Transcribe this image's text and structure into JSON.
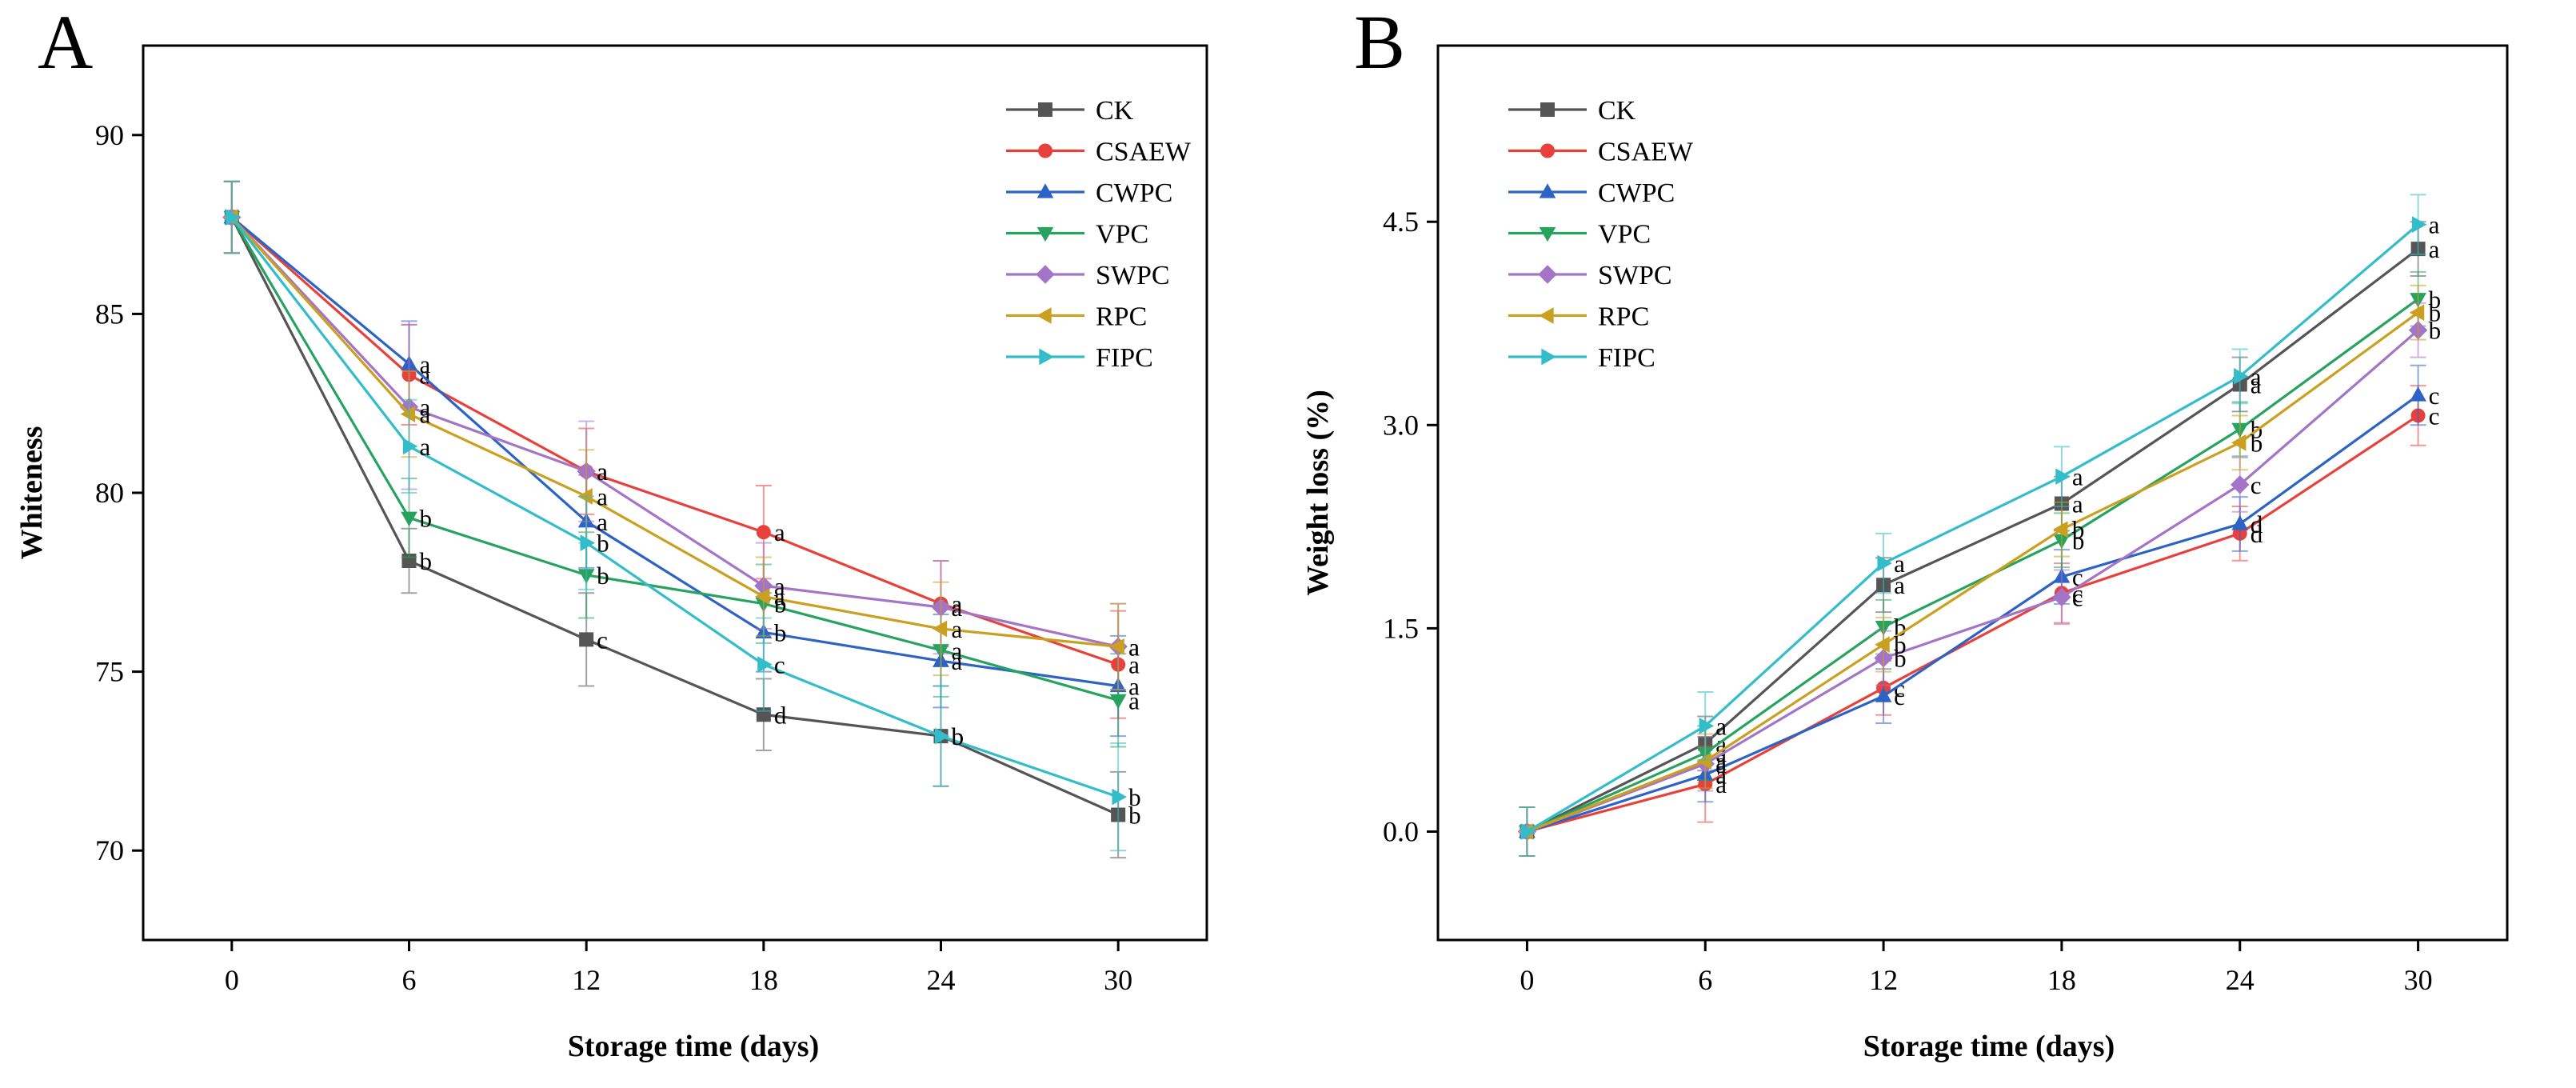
{
  "chart_data": [
    {
      "panel_label": "A",
      "type": "line",
      "xlabel": "Storage time (days)",
      "ylabel": "Whiteness",
      "x": [
        0,
        6,
        12,
        18,
        24,
        30
      ],
      "xlim": [
        -3,
        33
      ],
      "ylim": [
        67.5,
        92.5
      ],
      "yticks": [
        70,
        75,
        80,
        85,
        90
      ],
      "ytick_labels": [
        "70",
        "75",
        "80",
        "85",
        "90"
      ],
      "legend_position": "top-right",
      "series": [
        {
          "name": "CK",
          "color": "#555555",
          "marker": "square",
          "values": [
            87.7,
            78.1,
            75.9,
            73.8,
            73.2,
            71.0
          ],
          "errors": [
            1.0,
            0.9,
            1.3,
            1.0,
            1.4,
            1.2
          ],
          "labels": [
            "",
            "b",
            "c",
            "d",
            "b",
            "b"
          ]
        },
        {
          "name": "CSAEW",
          "color": "#e8413c",
          "marker": "circle",
          "values": [
            87.7,
            83.3,
            80.6,
            78.9,
            76.9,
            75.2
          ],
          "errors": [
            1.0,
            1.4,
            1.2,
            1.3,
            1.2,
            1.5
          ],
          "labels": [
            "",
            "a",
            "a",
            "a",
            "a",
            "a"
          ]
        },
        {
          "name": "CWPC",
          "color": "#2d63c4",
          "marker": "triangle-up",
          "values": [
            87.7,
            83.6,
            79.2,
            76.1,
            75.3,
            74.6
          ],
          "errors": [
            1.0,
            1.2,
            1.3,
            1.1,
            1.3,
            1.4
          ],
          "labels": [
            "",
            "a",
            "a",
            "b",
            "a",
            "a"
          ]
        },
        {
          "name": "VPC",
          "color": "#27a360",
          "marker": "triangle-down",
          "values": [
            87.7,
            79.3,
            77.7,
            76.9,
            75.6,
            74.2
          ],
          "errors": [
            1.0,
            1.1,
            1.2,
            1.1,
            1.3,
            1.3
          ],
          "labels": [
            "",
            "b",
            "b",
            "b",
            "a",
            "a"
          ]
        },
        {
          "name": "SWPC",
          "color": "#a474c6",
          "marker": "diamond",
          "values": [
            87.7,
            82.4,
            80.6,
            77.4,
            76.8,
            75.7
          ],
          "errors": [
            1.0,
            2.3,
            1.4,
            1.2,
            1.3,
            1.2
          ],
          "labels": [
            "",
            "a",
            "a",
            "a",
            "a",
            "a"
          ]
        },
        {
          "name": "RPC",
          "color": "#c9a020",
          "marker": "triangle-left",
          "values": [
            87.7,
            82.2,
            79.9,
            77.1,
            76.2,
            75.7
          ],
          "errors": [
            1.0,
            1.2,
            1.3,
            1.1,
            1.3,
            1.2
          ],
          "labels": [
            "",
            "a",
            "a",
            "a",
            "a",
            "a"
          ]
        },
        {
          "name": "FIPC",
          "color": "#33bcc9",
          "marker": "triangle-right",
          "values": [
            87.7,
            81.3,
            78.6,
            75.2,
            73.2,
            71.5
          ],
          "errors": [
            1.0,
            1.3,
            1.3,
            1.3,
            1.4,
            1.5
          ],
          "labels": [
            "",
            "a",
            "b",
            "c",
            "b",
            "b"
          ]
        }
      ]
    },
    {
      "panel_label": "B",
      "type": "line",
      "xlabel": "Storage time (days)",
      "ylabel": "Weight loss  (%)",
      "x": [
        0,
        6,
        12,
        18,
        24,
        30
      ],
      "xlim": [
        -3,
        33
      ],
      "ylim": [
        -0.8,
        5.8
      ],
      "yticks": [
        0,
        1.5,
        3,
        4.5
      ],
      "ytick_labels": [
        "0.0",
        "1.5",
        "3.0",
        "4.5"
      ],
      "legend_position": "top-left",
      "series": [
        {
          "name": "CK",
          "color": "#555555",
          "marker": "square",
          "values": [
            0,
            0.65,
            1.82,
            2.42,
            3.3,
            4.3
          ],
          "errors": [
            0.18,
            0.2,
            0.2,
            0.2,
            0.2,
            0.2
          ],
          "labels": [
            "",
            "a",
            "a",
            "a",
            "a",
            "a"
          ]
        },
        {
          "name": "CSAEW",
          "color": "#e8413c",
          "marker": "circle",
          "values": [
            0,
            0.35,
            1.06,
            1.76,
            2.2,
            3.07
          ],
          "errors": [
            0.18,
            0.28,
            0.2,
            0.22,
            0.2,
            0.22
          ],
          "labels": [
            "",
            "a",
            "c",
            "c",
            "d",
            "c"
          ]
        },
        {
          "name": "CWPC",
          "color": "#2d63c4",
          "marker": "triangle-up",
          "values": [
            0,
            0.42,
            1.0,
            1.88,
            2.27,
            3.22
          ],
          "errors": [
            0.18,
            0.2,
            0.2,
            0.2,
            0.2,
            0.22
          ],
          "labels": [
            "",
            "a",
            "c",
            "c",
            "d",
            "c"
          ]
        },
        {
          "name": "VPC",
          "color": "#27a360",
          "marker": "triangle-down",
          "values": [
            0,
            0.58,
            1.51,
            2.15,
            2.97,
            3.93
          ],
          "errors": [
            0.18,
            0.2,
            0.2,
            0.2,
            0.2,
            0.2
          ],
          "labels": [
            "",
            "a",
            "b",
            "b",
            "b",
            "b"
          ]
        },
        {
          "name": "SWPC",
          "color": "#a474c6",
          "marker": "diamond",
          "values": [
            0,
            0.5,
            1.28,
            1.73,
            2.56,
            3.7
          ],
          "errors": [
            0.18,
            0.2,
            0.2,
            0.2,
            0.2,
            0.2
          ],
          "labels": [
            "",
            "a",
            "b",
            "c",
            "c",
            "b"
          ]
        },
        {
          "name": "RPC",
          "color": "#c9a020",
          "marker": "triangle-left",
          "values": [
            0,
            0.52,
            1.38,
            2.23,
            2.87,
            3.83
          ],
          "errors": [
            0.18,
            0.2,
            0.2,
            0.2,
            0.2,
            0.2
          ],
          "labels": [
            "",
            "a",
            "b",
            "b",
            "b",
            "b"
          ]
        },
        {
          "name": "FIPC",
          "color": "#33bcc9",
          "marker": "triangle-right",
          "values": [
            0,
            0.78,
            1.98,
            2.62,
            3.36,
            4.48
          ],
          "errors": [
            0.18,
            0.25,
            0.22,
            0.22,
            0.2,
            0.22
          ],
          "labels": [
            "",
            "a",
            "a",
            "a",
            "a",
            "a"
          ]
        }
      ]
    }
  ]
}
